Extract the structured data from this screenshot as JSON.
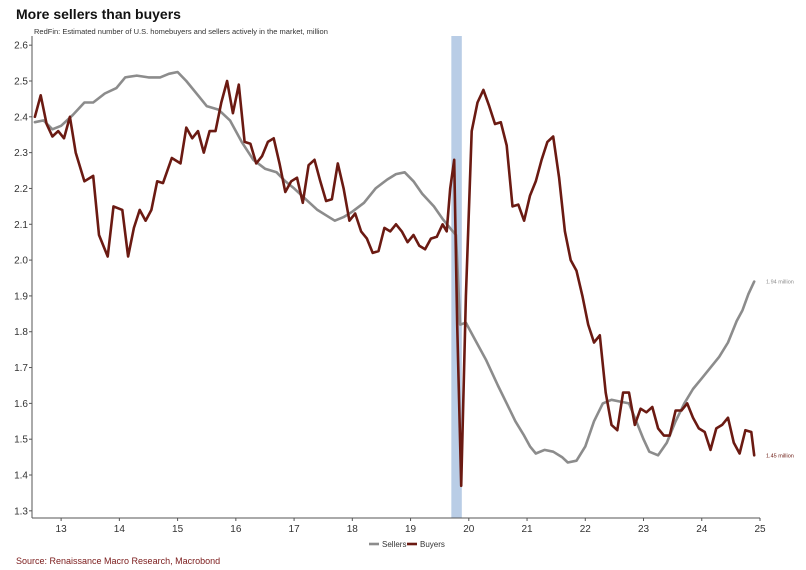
{
  "title": "More sellers than buyers",
  "subtitle": "RedFin: Estimated number of U.S. homebuyers and sellers actively in the market, million",
  "source": "Source: Renaissance Macro Research, Macrobond",
  "colors": {
    "sellers": "#8c8c8c",
    "buyers": "#6b1a12",
    "shade": "#b9cde6"
  },
  "chart_data": {
    "type": "line",
    "xlim": [
      12.5,
      25
    ],
    "ylim": [
      1.28,
      2.62
    ],
    "grid": false,
    "legend_position": "bottom",
    "x_ticks": [
      13,
      14,
      15,
      16,
      17,
      18,
      19,
      20,
      21,
      22,
      23,
      24,
      25
    ],
    "y_ticks": [
      1.3,
      1.4,
      1.5,
      1.6,
      1.7,
      1.8,
      1.9,
      2.0,
      2.1,
      2.2,
      2.3,
      2.4,
      2.5,
      2.6
    ],
    "shaded_region": [
      19.7,
      19.88
    ],
    "series": [
      {
        "name": "Sellers",
        "end_label": "1.94 million",
        "points": [
          [
            12.55,
            2.385
          ],
          [
            12.7,
            2.39
          ],
          [
            12.85,
            2.365
          ],
          [
            13.0,
            2.375
          ],
          [
            13.2,
            2.405
          ],
          [
            13.4,
            2.44
          ],
          [
            13.55,
            2.44
          ],
          [
            13.75,
            2.465
          ],
          [
            13.95,
            2.48
          ],
          [
            14.1,
            2.51
          ],
          [
            14.3,
            2.515
          ],
          [
            14.5,
            2.51
          ],
          [
            14.7,
            2.51
          ],
          [
            14.85,
            2.52
          ],
          [
            15.0,
            2.525
          ],
          [
            15.15,
            2.5
          ],
          [
            15.35,
            2.46
          ],
          [
            15.5,
            2.43
          ],
          [
            15.7,
            2.42
          ],
          [
            15.9,
            2.39
          ],
          [
            16.1,
            2.33
          ],
          [
            16.3,
            2.28
          ],
          [
            16.5,
            2.255
          ],
          [
            16.7,
            2.245
          ],
          [
            16.85,
            2.22
          ],
          [
            17.0,
            2.2
          ],
          [
            17.2,
            2.17
          ],
          [
            17.4,
            2.14
          ],
          [
            17.55,
            2.125
          ],
          [
            17.7,
            2.11
          ],
          [
            17.85,
            2.12
          ],
          [
            18.0,
            2.135
          ],
          [
            18.2,
            2.16
          ],
          [
            18.4,
            2.2
          ],
          [
            18.6,
            2.225
          ],
          [
            18.75,
            2.24
          ],
          [
            18.9,
            2.245
          ],
          [
            19.05,
            2.22
          ],
          [
            19.2,
            2.185
          ],
          [
            19.4,
            2.15
          ],
          [
            19.55,
            2.115
          ],
          [
            19.7,
            2.085
          ],
          [
            19.78,
            2.07
          ],
          [
            19.85,
            1.82
          ],
          [
            19.95,
            1.825
          ],
          [
            20.1,
            1.78
          ],
          [
            20.3,
            1.72
          ],
          [
            20.5,
            1.65
          ],
          [
            20.65,
            1.6
          ],
          [
            20.8,
            1.55
          ],
          [
            20.95,
            1.51
          ],
          [
            21.05,
            1.48
          ],
          [
            21.15,
            1.46
          ],
          [
            21.3,
            1.47
          ],
          [
            21.45,
            1.465
          ],
          [
            21.6,
            1.45
          ],
          [
            21.7,
            1.435
          ],
          [
            21.85,
            1.44
          ],
          [
            22.0,
            1.48
          ],
          [
            22.15,
            1.55
          ],
          [
            22.3,
            1.6
          ],
          [
            22.45,
            1.61
          ],
          [
            22.6,
            1.605
          ],
          [
            22.75,
            1.6
          ],
          [
            22.9,
            1.54
          ],
          [
            23.0,
            1.5
          ],
          [
            23.1,
            1.465
          ],
          [
            23.25,
            1.455
          ],
          [
            23.4,
            1.49
          ],
          [
            23.55,
            1.55
          ],
          [
            23.7,
            1.6
          ],
          [
            23.85,
            1.64
          ],
          [
            24.0,
            1.67
          ],
          [
            24.15,
            1.7
          ],
          [
            24.3,
            1.73
          ],
          [
            24.45,
            1.77
          ],
          [
            24.6,
            1.83
          ],
          [
            24.7,
            1.86
          ],
          [
            24.8,
            1.905
          ],
          [
            24.9,
            1.94
          ]
        ]
      },
      {
        "name": "Buyers",
        "end_label": "1.45 million",
        "points": [
          [
            12.55,
            2.4
          ],
          [
            12.65,
            2.46
          ],
          [
            12.75,
            2.38
          ],
          [
            12.85,
            2.345
          ],
          [
            12.95,
            2.36
          ],
          [
            13.05,
            2.34
          ],
          [
            13.15,
            2.4
          ],
          [
            13.25,
            2.3
          ],
          [
            13.4,
            2.22
          ],
          [
            13.55,
            2.235
          ],
          [
            13.65,
            2.07
          ],
          [
            13.8,
            2.01
          ],
          [
            13.9,
            2.15
          ],
          [
            14.05,
            2.14
          ],
          [
            14.15,
            2.01
          ],
          [
            14.25,
            2.09
          ],
          [
            14.35,
            2.14
          ],
          [
            14.45,
            2.11
          ],
          [
            14.55,
            2.14
          ],
          [
            14.65,
            2.22
          ],
          [
            14.75,
            2.215
          ],
          [
            14.9,
            2.285
          ],
          [
            15.05,
            2.27
          ],
          [
            15.15,
            2.37
          ],
          [
            15.25,
            2.34
          ],
          [
            15.35,
            2.36
          ],
          [
            15.45,
            2.3
          ],
          [
            15.55,
            2.36
          ],
          [
            15.65,
            2.36
          ],
          [
            15.75,
            2.44
          ],
          [
            15.85,
            2.5
          ],
          [
            15.95,
            2.41
          ],
          [
            16.05,
            2.49
          ],
          [
            16.15,
            2.33
          ],
          [
            16.25,
            2.325
          ],
          [
            16.35,
            2.27
          ],
          [
            16.45,
            2.29
          ],
          [
            16.55,
            2.33
          ],
          [
            16.65,
            2.34
          ],
          [
            16.75,
            2.27
          ],
          [
            16.85,
            2.19
          ],
          [
            16.95,
            2.22
          ],
          [
            17.05,
            2.23
          ],
          [
            17.15,
            2.16
          ],
          [
            17.25,
            2.265
          ],
          [
            17.35,
            2.28
          ],
          [
            17.45,
            2.22
          ],
          [
            17.55,
            2.165
          ],
          [
            17.65,
            2.17
          ],
          [
            17.75,
            2.27
          ],
          [
            17.85,
            2.2
          ],
          [
            17.95,
            2.11
          ],
          [
            18.05,
            2.13
          ],
          [
            18.15,
            2.08
          ],
          [
            18.25,
            2.06
          ],
          [
            18.35,
            2.02
          ],
          [
            18.45,
            2.025
          ],
          [
            18.55,
            2.09
          ],
          [
            18.65,
            2.08
          ],
          [
            18.75,
            2.1
          ],
          [
            18.85,
            2.08
          ],
          [
            18.95,
            2.05
          ],
          [
            19.05,
            2.07
          ],
          [
            19.15,
            2.04
          ],
          [
            19.25,
            2.03
          ],
          [
            19.35,
            2.06
          ],
          [
            19.45,
            2.065
          ],
          [
            19.55,
            2.1
          ],
          [
            19.62,
            2.08
          ],
          [
            19.68,
            2.2
          ],
          [
            19.75,
            2.28
          ],
          [
            19.8,
            1.82
          ],
          [
            19.87,
            1.37
          ],
          [
            19.95,
            1.9
          ],
          [
            20.05,
            2.36
          ],
          [
            20.15,
            2.44
          ],
          [
            20.25,
            2.475
          ],
          [
            20.35,
            2.43
          ],
          [
            20.45,
            2.38
          ],
          [
            20.55,
            2.385
          ],
          [
            20.65,
            2.32
          ],
          [
            20.75,
            2.15
          ],
          [
            20.85,
            2.155
          ],
          [
            20.95,
            2.11
          ],
          [
            21.05,
            2.18
          ],
          [
            21.15,
            2.22
          ],
          [
            21.25,
            2.28
          ],
          [
            21.35,
            2.33
          ],
          [
            21.45,
            2.345
          ],
          [
            21.55,
            2.23
          ],
          [
            21.65,
            2.08
          ],
          [
            21.75,
            2.0
          ],
          [
            21.85,
            1.97
          ],
          [
            21.95,
            1.9
          ],
          [
            22.05,
            1.82
          ],
          [
            22.15,
            1.77
          ],
          [
            22.25,
            1.79
          ],
          [
            22.35,
            1.63
          ],
          [
            22.45,
            1.54
          ],
          [
            22.55,
            1.525
          ],
          [
            22.65,
            1.63
          ],
          [
            22.75,
            1.63
          ],
          [
            22.85,
            1.54
          ],
          [
            22.95,
            1.585
          ],
          [
            23.05,
            1.575
          ],
          [
            23.15,
            1.59
          ],
          [
            23.25,
            1.53
          ],
          [
            23.35,
            1.51
          ],
          [
            23.45,
            1.51
          ],
          [
            23.55,
            1.58
          ],
          [
            23.65,
            1.58
          ],
          [
            23.75,
            1.6
          ],
          [
            23.85,
            1.56
          ],
          [
            23.95,
            1.53
          ],
          [
            24.05,
            1.52
          ],
          [
            24.15,
            1.47
          ],
          [
            24.25,
            1.53
          ],
          [
            24.35,
            1.54
          ],
          [
            24.45,
            1.56
          ],
          [
            24.55,
            1.49
          ],
          [
            24.65,
            1.46
          ],
          [
            24.75,
            1.525
          ],
          [
            24.85,
            1.52
          ],
          [
            24.9,
            1.455
          ]
        ]
      }
    ]
  }
}
